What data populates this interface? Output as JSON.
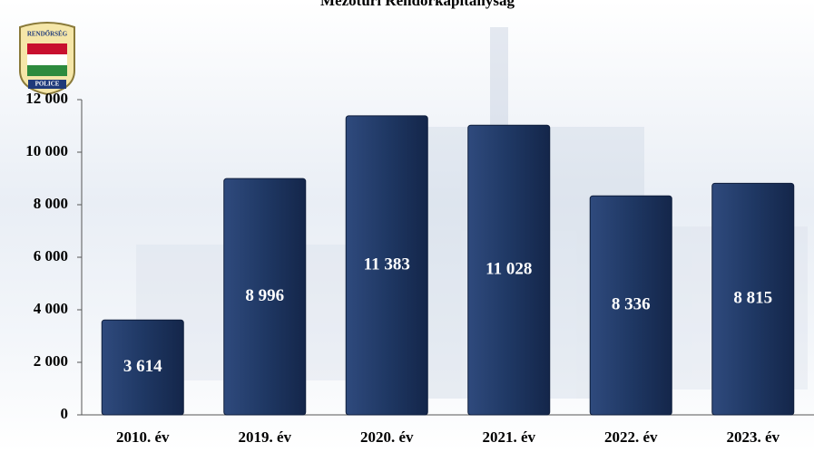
{
  "chart_data": {
    "type": "bar",
    "title": "Mezőtúri Rendőrkapitányság",
    "logo_text": [
      "RENDŐRSÉG",
      "POLICE"
    ],
    "categories": [
      "2010. év",
      "2019. év",
      "2020. év",
      "2021. év",
      "2022. év",
      "2023. év"
    ],
    "values": [
      3614,
      8996,
      11383,
      11028,
      8336,
      8815
    ],
    "value_labels": [
      "3 614",
      "8 996",
      "11 383",
      "11 028",
      "8 336",
      "8 815"
    ],
    "color": "#1f3864",
    "ylim": [
      0,
      12000
    ],
    "yticks": [
      {
        "value": 0,
        "label": "0"
      },
      {
        "value": 2000,
        "label": "2 000"
      },
      {
        "value": 4000,
        "label": "4 000"
      },
      {
        "value": 6000,
        "label": "6 000"
      },
      {
        "value": 8000,
        "label": "8 000"
      },
      {
        "value": 10000,
        "label": "10 000"
      },
      {
        "value": 12000,
        "label": "12 000"
      }
    ],
    "grid": false
  }
}
